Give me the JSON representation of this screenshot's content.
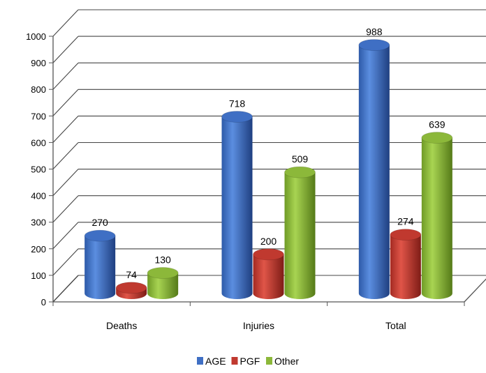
{
  "chart_data": {
    "type": "bar",
    "categories": [
      "Deaths",
      "Injuries",
      "Total"
    ],
    "series": [
      {
        "name": "AGE",
        "values": [
          270,
          718,
          988
        ],
        "color": "#3f6fc4"
      },
      {
        "name": "PGF",
        "values": [
          74,
          200,
          274
        ],
        "color": "#c0392f"
      },
      {
        "name": "Other",
        "values": [
          130,
          509,
          639
        ],
        "color": "#8cb83a"
      }
    ],
    "ylim": [
      0,
      1000
    ],
    "yticks": [
      "0",
      "100",
      "200",
      "300",
      "400",
      "500",
      "600",
      "700",
      "800",
      "900",
      "1000"
    ],
    "grid": true,
    "legend": "bottom"
  }
}
